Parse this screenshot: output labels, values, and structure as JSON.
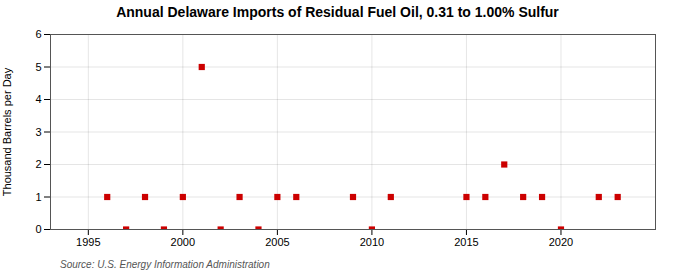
{
  "chart_data": {
    "type": "scatter",
    "title": "Annual Delaware Imports of Residual Fuel Oil, 0.31 to 1.00% Sulfur",
    "ylabel": "Thousand Barrels per Day",
    "annotation": "Source: U.S. Energy Information Administration",
    "x": [
      1996,
      1997,
      1998,
      1999,
      2000,
      2001,
      2002,
      2003,
      2004,
      2005,
      2006,
      2009,
      2010,
      2011,
      2015,
      2016,
      2017,
      2018,
      2019,
      2020,
      2022,
      2023
    ],
    "values": [
      1,
      0,
      1,
      0,
      1,
      5,
      0,
      1,
      0,
      1,
      1,
      1,
      0,
      1,
      1,
      1,
      2,
      1,
      1,
      0,
      1,
      1
    ],
    "color": "#cc0000",
    "marker": "square",
    "xlim": [
      1993,
      2025
    ],
    "xticks": [
      1995,
      2000,
      2005,
      2010,
      2015,
      2020
    ],
    "ylim": [
      0,
      6
    ],
    "yticks": [
      0,
      1,
      2,
      3,
      4,
      5,
      6
    ],
    "grid": true
  }
}
